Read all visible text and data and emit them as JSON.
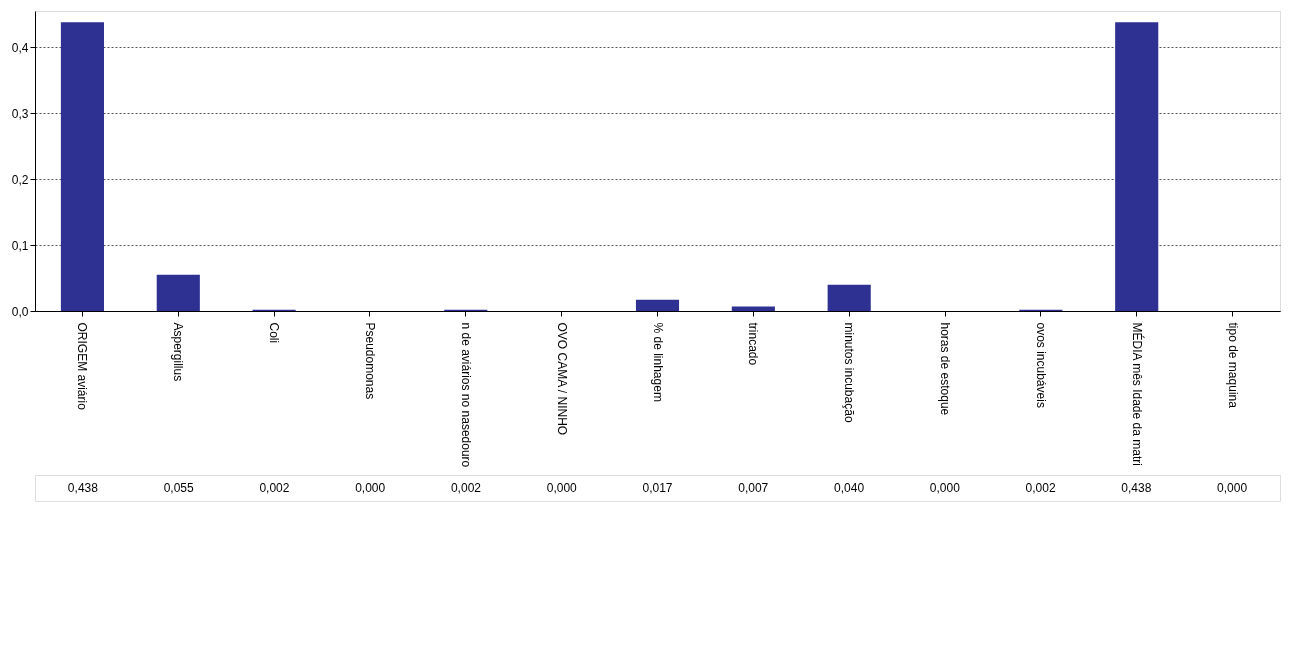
{
  "chart_data": {
    "type": "bar",
    "categories": [
      "ORIGEM aviário",
      "Aspergillus",
      "Coli",
      "Pseudomonas",
      "n de aviários no nasedouro",
      "OVO CAMA / NINHO",
      "% de linhagem",
      "trincado",
      "minutos incubação",
      "horas de estoque",
      "ovos incubáveis",
      "MÉDIA mês Idade da matri",
      "tipo de maquina"
    ],
    "values": [
      0.438,
      0.055,
      0.002,
      0.0,
      0.002,
      0.0,
      0.017,
      0.007,
      0.04,
      0.0,
      0.002,
      0.438,
      0.0
    ],
    "value_labels": [
      "0,438",
      "0,055",
      "0,002",
      "0,000",
      "0,002",
      "0,000",
      "0,017",
      "0,007",
      "0,040",
      "0,000",
      "0,002",
      "0,438",
      "0,000"
    ],
    "color": "#2e3192",
    "ylim": [
      0,
      0.455
    ],
    "yticks": [
      {
        "value": 0,
        "label": "0,0"
      },
      {
        "value": 0.1,
        "label": "0,1"
      },
      {
        "value": 0.2,
        "label": "0,2"
      },
      {
        "value": 0.3,
        "label": "0,3"
      },
      {
        "value": 0.4,
        "label": "0,4"
      }
    ],
    "grid": "y"
  }
}
